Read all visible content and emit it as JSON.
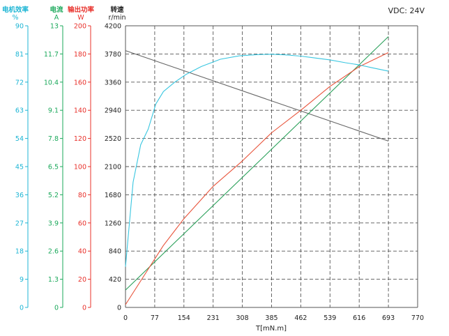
{
  "chart_data": {
    "type": "line",
    "title": "",
    "note": "VDC: 24V",
    "x_axis": {
      "label": "T[mN.m]",
      "min": 0,
      "max": 770,
      "ticks": [
        0,
        77,
        154,
        231,
        308,
        385,
        462,
        539,
        616,
        693,
        770
      ]
    },
    "y_axes": [
      {
        "key": "efficiency",
        "label_line1": "电机效率",
        "label_line2": "%",
        "min": 0,
        "max": 90,
        "color": "#1cb5d4",
        "ticks": [
          0,
          9,
          18,
          27,
          36,
          45,
          54,
          63,
          72,
          81,
          90
        ]
      },
      {
        "key": "current",
        "label_line1": "电流",
        "label_line2": "A",
        "min": 0,
        "max": 13,
        "color": "#1aa85a",
        "ticks": [
          "0",
          "1.3",
          "2.6",
          "3.9",
          "5.2",
          "6.5",
          "7.8",
          "9.1",
          "10.4",
          "11.7",
          "13"
        ]
      },
      {
        "key": "power",
        "label_line1": "输出功率",
        "label_line2": "W",
        "min": 0,
        "max": 200,
        "color": "#e8302a",
        "ticks": [
          0,
          20,
          40,
          60,
          80,
          100,
          120,
          140,
          160,
          180,
          200
        ]
      },
      {
        "key": "speed",
        "label_line1": "转速",
        "label_line2": "r/min",
        "min": 0,
        "max": 4200,
        "color": "#222222",
        "ticks": [
          0,
          420,
          840,
          1260,
          1680,
          2100,
          2520,
          2940,
          3360,
          3780,
          4200
        ]
      }
    ],
    "grid": true,
    "series": [
      {
        "axis": "speed",
        "color": "#666666",
        "x": [
          0,
          693
        ],
        "y": [
          3830,
          2480
        ]
      },
      {
        "axis": "current",
        "color": "#2aa05a",
        "x": [
          0,
          693
        ],
        "y": [
          0.8,
          12.5
        ]
      },
      {
        "axis": "power",
        "color": "#e8533a",
        "x": [
          0,
          50,
          100,
          154,
          231,
          308,
          385,
          462,
          539,
          616,
          693
        ],
        "y": [
          2,
          23,
          44,
          63,
          86,
          104,
          124,
          140,
          157,
          171,
          181
        ]
      },
      {
        "axis": "efficiency",
        "color": "#38c6e0",
        "x": [
          0,
          20,
          40,
          60,
          80,
          100,
          130,
          160,
          200,
          250,
          300,
          350,
          385,
          420,
          462,
          500,
          539,
          580,
          616,
          650,
          693
        ],
        "y": [
          13,
          40,
          52,
          57,
          65,
          69,
          72,
          74.5,
          77,
          79.3,
          80.4,
          80.8,
          80.9,
          80.7,
          80.3,
          79.7,
          79.1,
          78.2,
          77.5,
          76.6,
          75.5
        ]
      }
    ]
  }
}
